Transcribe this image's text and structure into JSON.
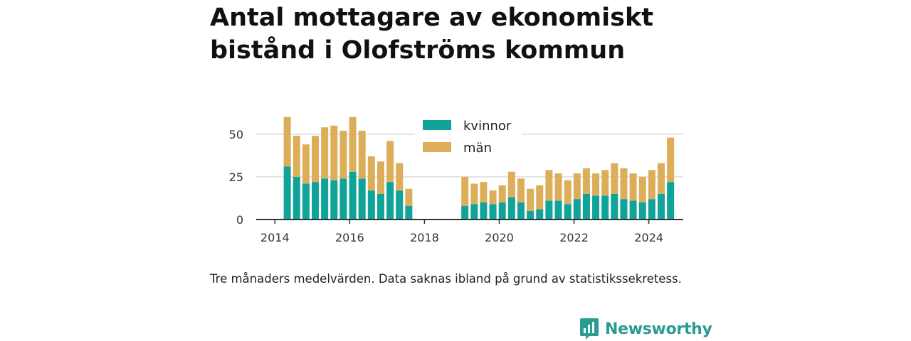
{
  "title": "Antal mottagare av ekonomiskt bistånd i Olofströms kommun",
  "caption": "Tre månaders medelvärden. Data saknas ibland på grund av statistikssekretess.",
  "brand": {
    "name": "Newsworthy",
    "icon": "newsworthy-logo-icon",
    "color": "#2a9d93"
  },
  "colors": {
    "kvinnor": "#0fa39a",
    "man": "#dcae5a",
    "grid": "#dddddd",
    "axis": "#333333"
  },
  "chart_data": {
    "type": "bar",
    "stacked": true,
    "title": "Antal mottagare av ekonomiskt bistånd i Olofströms kommun",
    "xlabel": "",
    "ylabel": "",
    "xlim": [
      2013.5,
      2024.92
    ],
    "ylim": [
      0,
      62
    ],
    "yticks": [
      0,
      25,
      50
    ],
    "xticks": [
      2014,
      2016,
      2018,
      2020,
      2022,
      2024
    ],
    "grid": true,
    "legend": {
      "position": "top-center",
      "entries": [
        "kvinnor",
        "män"
      ]
    },
    "x": [
      2014.33,
      2014.58,
      2014.83,
      2015.08,
      2015.33,
      2015.58,
      2015.83,
      2016.08,
      2016.33,
      2016.58,
      2016.83,
      2017.08,
      2017.33,
      2017.58,
      2019.08,
      2019.33,
      2019.58,
      2019.83,
      2020.08,
      2020.33,
      2020.58,
      2020.83,
      2021.08,
      2021.33,
      2021.58,
      2021.83,
      2022.08,
      2022.33,
      2022.58,
      2022.83,
      2023.08,
      2023.33,
      2023.58,
      2023.83,
      2024.08,
      2024.33,
      2024.58
    ],
    "series": [
      {
        "name": "kvinnor",
        "values": [
          31,
          25,
          21,
          22,
          24,
          23,
          24,
          28,
          24,
          17,
          15,
          22,
          17,
          8,
          8,
          9,
          10,
          9,
          10,
          13,
          10,
          5,
          6,
          11,
          11,
          9,
          12,
          15,
          14,
          14,
          15,
          12,
          11,
          10,
          12,
          15,
          22
        ]
      },
      {
        "name": "män",
        "values": [
          29,
          24,
          23,
          27,
          30,
          32,
          28,
          32,
          28,
          20,
          19,
          24,
          16,
          10,
          17,
          12,
          12,
          8,
          10,
          15,
          14,
          13,
          14,
          18,
          16,
          14,
          15,
          15,
          13,
          15,
          18,
          18,
          16,
          15,
          17,
          18,
          26
        ]
      }
    ]
  }
}
